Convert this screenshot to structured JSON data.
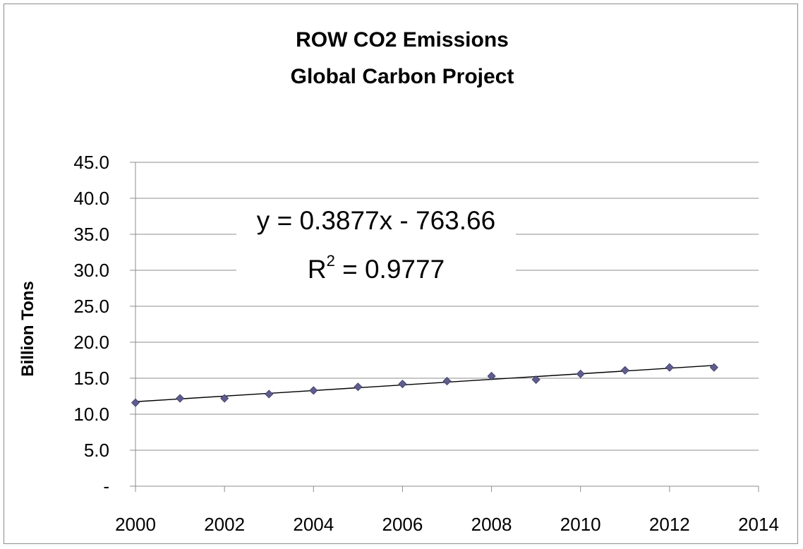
{
  "chart_data": {
    "type": "scatter",
    "title": "ROW CO2 Emissions",
    "subtitle": "Global Carbon Project",
    "xlabel": "",
    "ylabel": "Billion Tons",
    "xlim": [
      2000,
      2014
    ],
    "ylim": [
      0,
      45
    ],
    "x_ticks": [
      "2000",
      "2002",
      "2004",
      "2006",
      "2008",
      "2010",
      "2012",
      "2014"
    ],
    "y_ticks": [
      "-",
      "5.0",
      "10.0",
      "15.0",
      "20.0",
      "25.0",
      "30.0",
      "35.0",
      "40.0",
      "45.0"
    ],
    "grid": true,
    "series": [
      {
        "name": "ROW CO2 Emissions",
        "marker": "diamond",
        "color": "#5f5d8e",
        "x": [
          2000,
          2001,
          2002,
          2003,
          2004,
          2005,
          2006,
          2007,
          2008,
          2009,
          2010,
          2011,
          2012,
          2013
        ],
        "values": [
          11.6,
          12.2,
          12.2,
          12.8,
          13.3,
          13.8,
          14.2,
          14.6,
          15.3,
          14.8,
          15.6,
          16.1,
          16.5,
          16.5
        ]
      }
    ],
    "trendline": {
      "type": "linear",
      "color": "#000000",
      "x_range": [
        2000,
        2013
      ],
      "slope": 0.3877,
      "intercept": -763.66,
      "equation_text": "y = 0.3877x - 763.66",
      "r2_label": "R",
      "r2_exponent": "2",
      "r2_value_text": " = 0.9777"
    }
  }
}
